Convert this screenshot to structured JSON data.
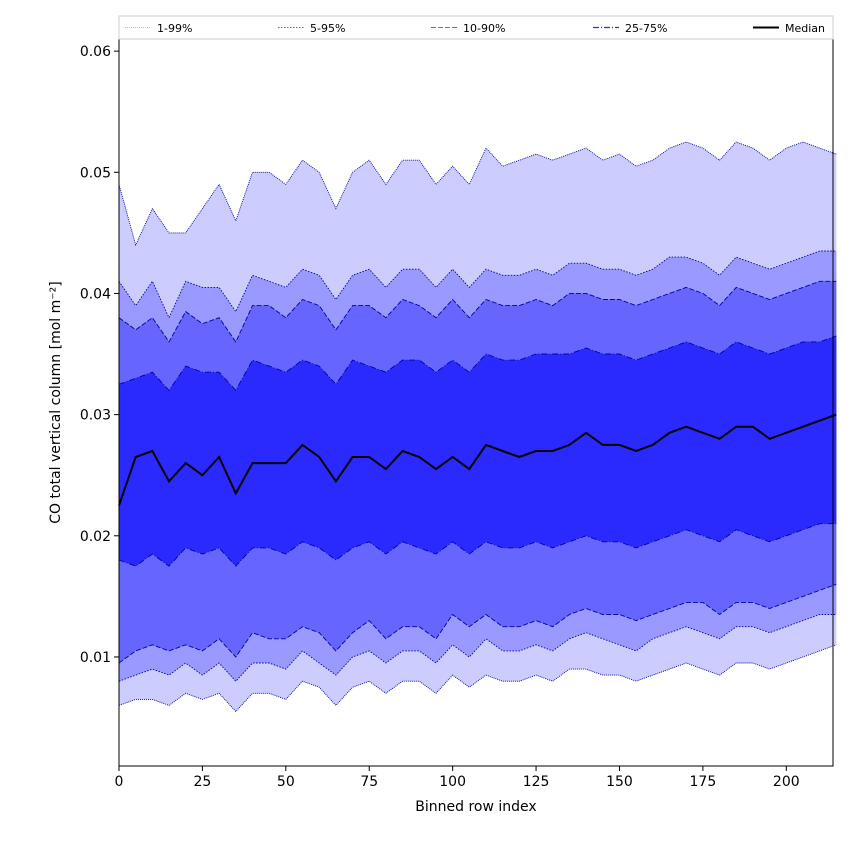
{
  "chart_data": {
    "type": "area",
    "xlabel": "Binned row index",
    "ylabel": "CO total vertical column [mol m⁻²]",
    "xlim": [
      0,
      214
    ],
    "ylim": [
      0.001,
      0.061
    ],
    "xticks": [
      0,
      25,
      50,
      75,
      100,
      125,
      150,
      175,
      200
    ],
    "yticks": [
      0.01,
      0.02,
      0.03,
      0.04,
      0.05,
      0.06
    ],
    "ytick_labels": [
      "0.01",
      "0.02",
      "0.03",
      "0.04",
      "0.05",
      "0.06"
    ],
    "grid": false,
    "legend_position": "top",
    "legend": [
      {
        "label": "1-99%",
        "style": "dotted"
      },
      {
        "label": "5-95%",
        "style": "dotted"
      },
      {
        "label": "10-90%",
        "style": "dashed"
      },
      {
        "label": "25-75%",
        "style": "dashdot"
      },
      {
        "label": "Median",
        "style": "solid"
      }
    ],
    "colors": {
      "band_1_99": "#ccccff",
      "band_5_95": "#9999ff",
      "band_10_90": "#6666ff",
      "band_25_75": "#2a2aff",
      "edge": "#0000aa",
      "median": "#000000"
    },
    "x_step": 5,
    "series": [
      {
        "name": "Median",
        "values": [
          0.0225,
          0.0265,
          0.027,
          0.0245,
          0.026,
          0.025,
          0.0265,
          0.0235,
          0.026,
          0.026,
          0.026,
          0.0275,
          0.0265,
          0.0245,
          0.0265,
          0.0265,
          0.0255,
          0.027,
          0.0265,
          0.0255,
          0.0265,
          0.0255,
          0.0275,
          0.027,
          0.0265,
          0.027,
          0.027,
          0.0275,
          0.0285,
          0.0275,
          0.0275,
          0.027,
          0.0275,
          0.0285,
          0.029,
          0.0285,
          0.028,
          0.029,
          0.029,
          0.028,
          0.0285,
          0.029,
          0.0295,
          0.03
        ]
      },
      {
        "name": "25%",
        "values": [
          0.018,
          0.0175,
          0.0185,
          0.0175,
          0.019,
          0.0185,
          0.019,
          0.0175,
          0.019,
          0.019,
          0.0185,
          0.0195,
          0.019,
          0.018,
          0.019,
          0.0195,
          0.0185,
          0.0195,
          0.019,
          0.0185,
          0.0195,
          0.0185,
          0.0195,
          0.019,
          0.019,
          0.0195,
          0.019,
          0.0195,
          0.02,
          0.0195,
          0.0195,
          0.019,
          0.0195,
          0.02,
          0.0205,
          0.02,
          0.0195,
          0.0205,
          0.02,
          0.0195,
          0.02,
          0.0205,
          0.021,
          0.021
        ]
      },
      {
        "name": "75%",
        "values": [
          0.0325,
          0.033,
          0.0335,
          0.032,
          0.034,
          0.0335,
          0.0335,
          0.032,
          0.0345,
          0.034,
          0.0335,
          0.0345,
          0.034,
          0.0325,
          0.0345,
          0.034,
          0.0335,
          0.0345,
          0.0345,
          0.0335,
          0.0345,
          0.0335,
          0.035,
          0.0345,
          0.0345,
          0.035,
          0.035,
          0.035,
          0.0355,
          0.035,
          0.035,
          0.0345,
          0.035,
          0.0355,
          0.036,
          0.0355,
          0.035,
          0.036,
          0.0355,
          0.035,
          0.0355,
          0.036,
          0.036,
          0.0365
        ]
      },
      {
        "name": "10%",
        "values": [
          0.0095,
          0.0105,
          0.011,
          0.0105,
          0.011,
          0.0105,
          0.0115,
          0.01,
          0.012,
          0.0115,
          0.0115,
          0.0125,
          0.012,
          0.0105,
          0.012,
          0.013,
          0.0115,
          0.0125,
          0.0125,
          0.0115,
          0.0135,
          0.0125,
          0.0135,
          0.0125,
          0.0125,
          0.013,
          0.0125,
          0.0135,
          0.014,
          0.0135,
          0.0135,
          0.013,
          0.0135,
          0.014,
          0.0145,
          0.0145,
          0.0135,
          0.0145,
          0.0145,
          0.014,
          0.0145,
          0.015,
          0.0155,
          0.016
        ]
      },
      {
        "name": "90%",
        "values": [
          0.038,
          0.037,
          0.038,
          0.036,
          0.0385,
          0.0375,
          0.038,
          0.036,
          0.039,
          0.039,
          0.038,
          0.0395,
          0.039,
          0.037,
          0.039,
          0.039,
          0.038,
          0.0395,
          0.039,
          0.038,
          0.0395,
          0.038,
          0.0395,
          0.039,
          0.039,
          0.0395,
          0.039,
          0.04,
          0.04,
          0.0395,
          0.0395,
          0.039,
          0.0395,
          0.04,
          0.0405,
          0.04,
          0.039,
          0.0405,
          0.04,
          0.0395,
          0.04,
          0.0405,
          0.041,
          0.041
        ]
      },
      {
        "name": "5%",
        "values": [
          0.008,
          0.0085,
          0.009,
          0.0085,
          0.0095,
          0.0085,
          0.0095,
          0.008,
          0.0095,
          0.0095,
          0.009,
          0.0105,
          0.0095,
          0.0085,
          0.01,
          0.0105,
          0.0095,
          0.0105,
          0.0105,
          0.0095,
          0.011,
          0.01,
          0.0115,
          0.0105,
          0.0105,
          0.011,
          0.0105,
          0.0115,
          0.012,
          0.0115,
          0.011,
          0.0105,
          0.0115,
          0.012,
          0.0125,
          0.012,
          0.0115,
          0.0125,
          0.0125,
          0.012,
          0.0125,
          0.013,
          0.0135,
          0.0135
        ]
      },
      {
        "name": "95%",
        "values": [
          0.041,
          0.039,
          0.041,
          0.038,
          0.041,
          0.0405,
          0.0405,
          0.0385,
          0.0415,
          0.041,
          0.0405,
          0.042,
          0.0415,
          0.0395,
          0.0415,
          0.042,
          0.0405,
          0.042,
          0.042,
          0.0405,
          0.042,
          0.0405,
          0.042,
          0.0415,
          0.0415,
          0.042,
          0.0415,
          0.0425,
          0.0425,
          0.042,
          0.042,
          0.0415,
          0.042,
          0.043,
          0.043,
          0.0425,
          0.0415,
          0.043,
          0.0425,
          0.042,
          0.0425,
          0.043,
          0.0435,
          0.0435
        ]
      },
      {
        "name": "1%",
        "values": [
          0.006,
          0.0065,
          0.0065,
          0.006,
          0.007,
          0.0065,
          0.007,
          0.0055,
          0.007,
          0.007,
          0.0065,
          0.008,
          0.0075,
          0.006,
          0.0075,
          0.008,
          0.007,
          0.008,
          0.008,
          0.007,
          0.0085,
          0.0075,
          0.0085,
          0.008,
          0.008,
          0.0085,
          0.008,
          0.009,
          0.009,
          0.0085,
          0.0085,
          0.008,
          0.0085,
          0.009,
          0.0095,
          0.009,
          0.0085,
          0.0095,
          0.0095,
          0.009,
          0.0095,
          0.01,
          0.0105,
          0.011
        ]
      },
      {
        "name": "99%",
        "values": [
          0.049,
          0.044,
          0.047,
          0.045,
          0.045,
          0.047,
          0.049,
          0.046,
          0.05,
          0.05,
          0.049,
          0.051,
          0.05,
          0.047,
          0.05,
          0.051,
          0.049,
          0.051,
          0.051,
          0.049,
          0.0505,
          0.049,
          0.052,
          0.0505,
          0.051,
          0.0515,
          0.051,
          0.0515,
          0.052,
          0.051,
          0.0515,
          0.0505,
          0.051,
          0.052,
          0.0525,
          0.052,
          0.051,
          0.0525,
          0.052,
          0.051,
          0.052,
          0.0525,
          0.052,
          0.0515
        ]
      }
    ]
  }
}
